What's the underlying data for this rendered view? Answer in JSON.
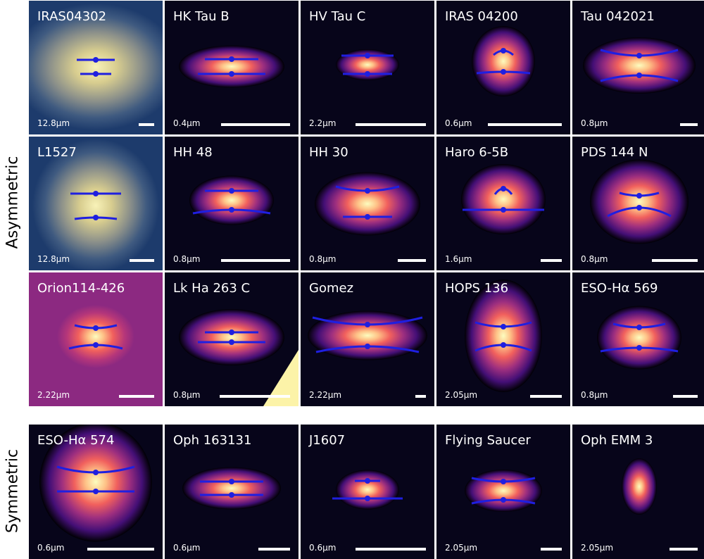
{
  "groups": [
    {
      "label": "Asymmetric",
      "panels": [
        {
          "name": "IRAS04302",
          "wavelength": "12.8μm"
        },
        {
          "name": "HK Tau B",
          "wavelength": "0.4μm"
        },
        {
          "name": "HV Tau C",
          "wavelength": "2.2μm"
        },
        {
          "name": "IRAS 04200",
          "wavelength": "0.6μm"
        },
        {
          "name": "Tau 042021",
          "wavelength": "0.8μm"
        },
        {
          "name": "L1527",
          "wavelength": "12.8μm"
        },
        {
          "name": "HH 48",
          "wavelength": "0.8μm"
        },
        {
          "name": "HH 30",
          "wavelength": "0.8μm"
        },
        {
          "name": "Haro 6-5B",
          "wavelength": "1.6μm"
        },
        {
          "name": "PDS 144 N",
          "wavelength": "0.8μm"
        },
        {
          "name": "Orion114-426",
          "wavelength": "2.22μm"
        },
        {
          "name": "Lk Ha 263 C",
          "wavelength": "0.8μm"
        },
        {
          "name": "Gomez",
          "wavelength": "2.22μm"
        },
        {
          "name": "HOPS 136",
          "wavelength": "2.05μm"
        },
        {
          "name": "ESO-Hα 569",
          "wavelength": "0.8μm"
        }
      ]
    },
    {
      "label": "Symmetric",
      "panels": [
        {
          "name": "ESO-Hα 574",
          "wavelength": "0.6μm"
        },
        {
          "name": "Oph 163131",
          "wavelength": "0.6μm"
        },
        {
          "name": "J1607",
          "wavelength": "0.6μm"
        },
        {
          "name": "Flying Saucer",
          "wavelength": "2.05μm"
        },
        {
          "name": "Oph EMM 3",
          "wavelength": "2.05μm"
        }
      ]
    }
  ]
}
